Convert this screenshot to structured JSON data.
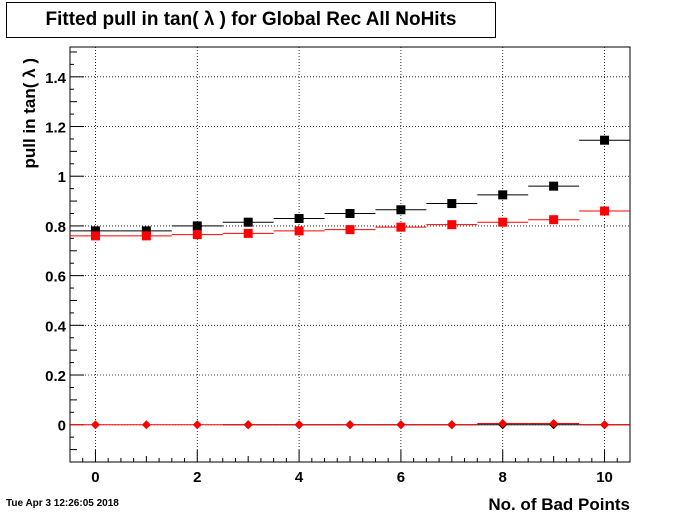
{
  "chart_data": {
    "type": "scatter",
    "title": "Fitted pull in tan( λ ) for Global Rec All NoHits",
    "xlabel": "No. of Bad Points",
    "ylabel": "pull in tan( λ )",
    "xlim": [
      -0.5,
      10.5
    ],
    "ylim": [
      -0.15,
      1.52
    ],
    "x_ticks": [
      0,
      2,
      4,
      6,
      8,
      10
    ],
    "y_ticks": [
      0,
      0.2,
      0.4,
      0.6,
      0.8,
      1,
      1.2,
      1.4
    ],
    "x_tick_labels": [
      "0",
      "2",
      "4",
      "6",
      "8",
      "10"
    ],
    "y_tick_labels": [
      "0",
      "0.2",
      "0.4",
      "0.6",
      "0.8",
      "1",
      "1.2",
      "1.4"
    ],
    "grid": true,
    "series": [
      {
        "marker": "square",
        "color": "#000000",
        "x": [
          0,
          1,
          2,
          3,
          4,
          5,
          6,
          7,
          8,
          9,
          10
        ],
        "values": [
          0.78,
          0.78,
          0.8,
          0.815,
          0.83,
          0.85,
          0.865,
          0.89,
          0.925,
          0.96,
          1.145
        ]
      },
      {
        "marker": "square",
        "color": "#ff0000",
        "x": [
          0,
          1,
          2,
          3,
          4,
          5,
          6,
          7,
          8,
          9,
          10
        ],
        "values": [
          0.76,
          0.76,
          0.765,
          0.77,
          0.78,
          0.785,
          0.795,
          0.805,
          0.815,
          0.825,
          0.86
        ]
      },
      {
        "marker": "diamond",
        "color": "#000000",
        "x": [
          3,
          4,
          5,
          6,
          7,
          8,
          9,
          10
        ],
        "values": [
          0.0,
          0.0,
          0.0,
          0.0,
          0.0,
          0.0,
          0.0,
          0.0
        ]
      },
      {
        "marker": "diamond",
        "color": "#ff0000",
        "x": [
          0,
          1,
          2,
          3,
          4,
          5,
          6,
          7,
          8,
          9,
          10
        ],
        "values": [
          0.0,
          0.0,
          0.0,
          0.0,
          0.0,
          0.0,
          0.0,
          0.0,
          0.005,
          0.005,
          0.0
        ]
      }
    ]
  },
  "timestamp": "Tue Apr  3 12:26:05 2018"
}
